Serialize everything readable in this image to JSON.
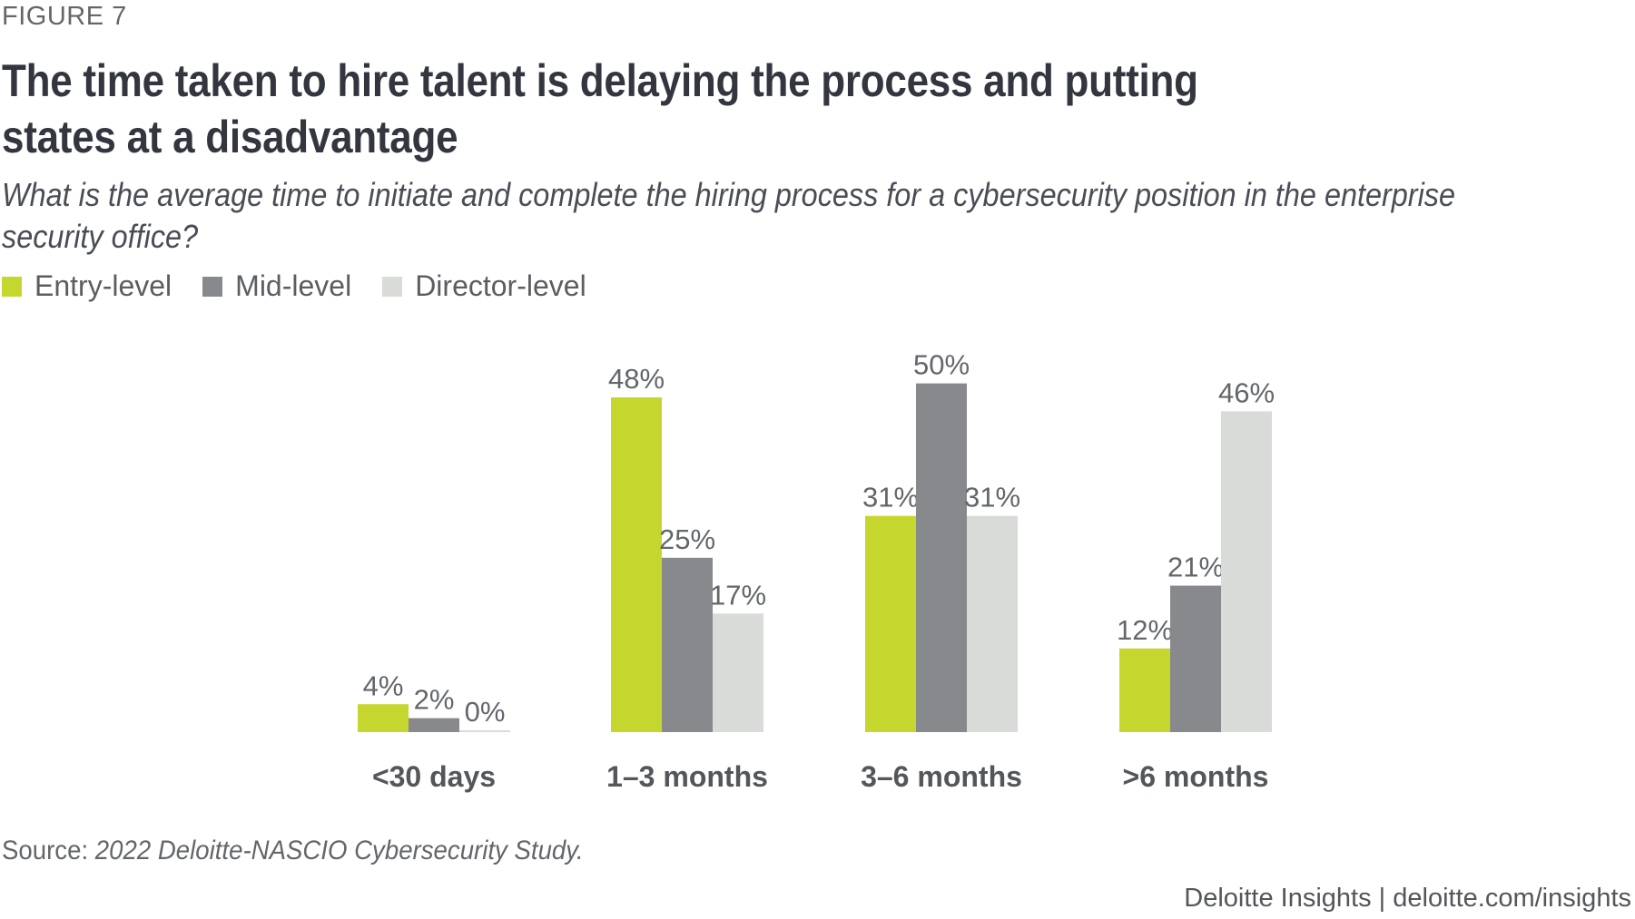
{
  "figure_label": "FIGURE 7",
  "title": "The time taken to hire talent is delaying the process and putting states at a disadvantage",
  "subtitle": "What is the average time to initiate and complete the hiring process for a cybersecurity position in the enterprise security office?",
  "legend": [
    {
      "label": "Entry-level",
      "color": "#c5d72f"
    },
    {
      "label": "Mid-level",
      "color": "#87898d"
    },
    {
      "label": "Director-level",
      "color": "#d9dbd8"
    }
  ],
  "source": {
    "prefix": "Source: ",
    "text": "2022 Deloitte-NASCIO Cybersecurity Study."
  },
  "footer": "Deloitte Insights | deloitte.com/insights",
  "chart_data": {
    "type": "bar",
    "title": "The time taken to hire talent is delaying the process and putting states at a disadvantage",
    "subtitle": "What is the average time to initiate and complete the hiring process for a cybersecurity position in the enterprise security office?",
    "categories": [
      "<30 days",
      "1–3 months",
      "3–6 months",
      ">6 months"
    ],
    "series": [
      {
        "name": "Entry-level",
        "color": "#c5d72f",
        "values": [
          4,
          48,
          31,
          12
        ]
      },
      {
        "name": "Mid-level",
        "color": "#87898d",
        "values": [
          2,
          25,
          50,
          21
        ]
      },
      {
        "name": "Director-level",
        "color": "#d9dbd8",
        "values": [
          0,
          17,
          31,
          46
        ]
      }
    ],
    "value_format": "percent",
    "xlabel": "",
    "ylabel": "",
    "ylim": [
      0,
      50
    ],
    "grid": false,
    "legend_position": "top-left"
  }
}
